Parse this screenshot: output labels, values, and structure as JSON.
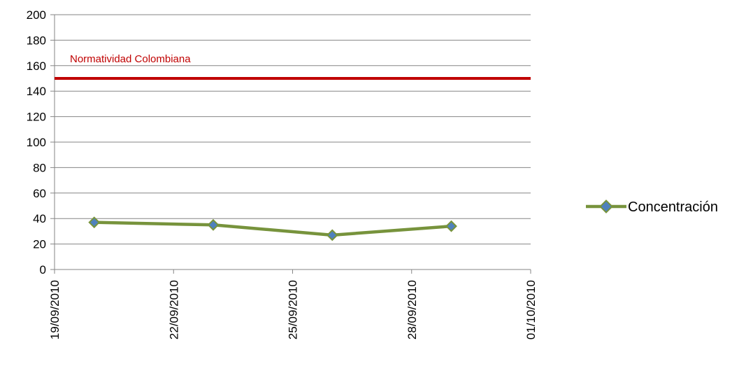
{
  "chart_data": {
    "type": "line",
    "title": "",
    "xlabel": "",
    "ylabel": "",
    "x_axis": {
      "type": "date",
      "range": [
        "2010-09-19",
        "2010-10-01"
      ],
      "ticks": [
        "2010-09-19",
        "2010-09-22",
        "2010-09-25",
        "2010-09-28",
        "2010-10-01"
      ],
      "tick_labels": [
        "19/09/2010",
        "22/09/2010",
        "25/09/2010",
        "28/09/2010",
        "01/10/2010"
      ]
    },
    "ylim": [
      0,
      200
    ],
    "y_ticks": [
      0,
      20,
      40,
      60,
      80,
      100,
      120,
      140,
      160,
      180,
      200
    ],
    "grid": true,
    "legend": {
      "placement": "right",
      "entries": [
        "Concentración"
      ]
    },
    "series": [
      {
        "name": "Concentración",
        "color": "#77933C",
        "marker_color": "#4F81BD",
        "points": [
          {
            "x": "2010-09-20",
            "y": 37
          },
          {
            "x": "2010-09-23",
            "y": 35
          },
          {
            "x": "2010-09-26",
            "y": 27
          },
          {
            "x": "2010-09-29",
            "y": 34
          }
        ]
      }
    ],
    "reference_line": {
      "label": "Normatividad Colombiana",
      "y": 150,
      "color": "#C00000"
    },
    "colors": {
      "grid": "#868686",
      "axis": "#868686"
    }
  }
}
